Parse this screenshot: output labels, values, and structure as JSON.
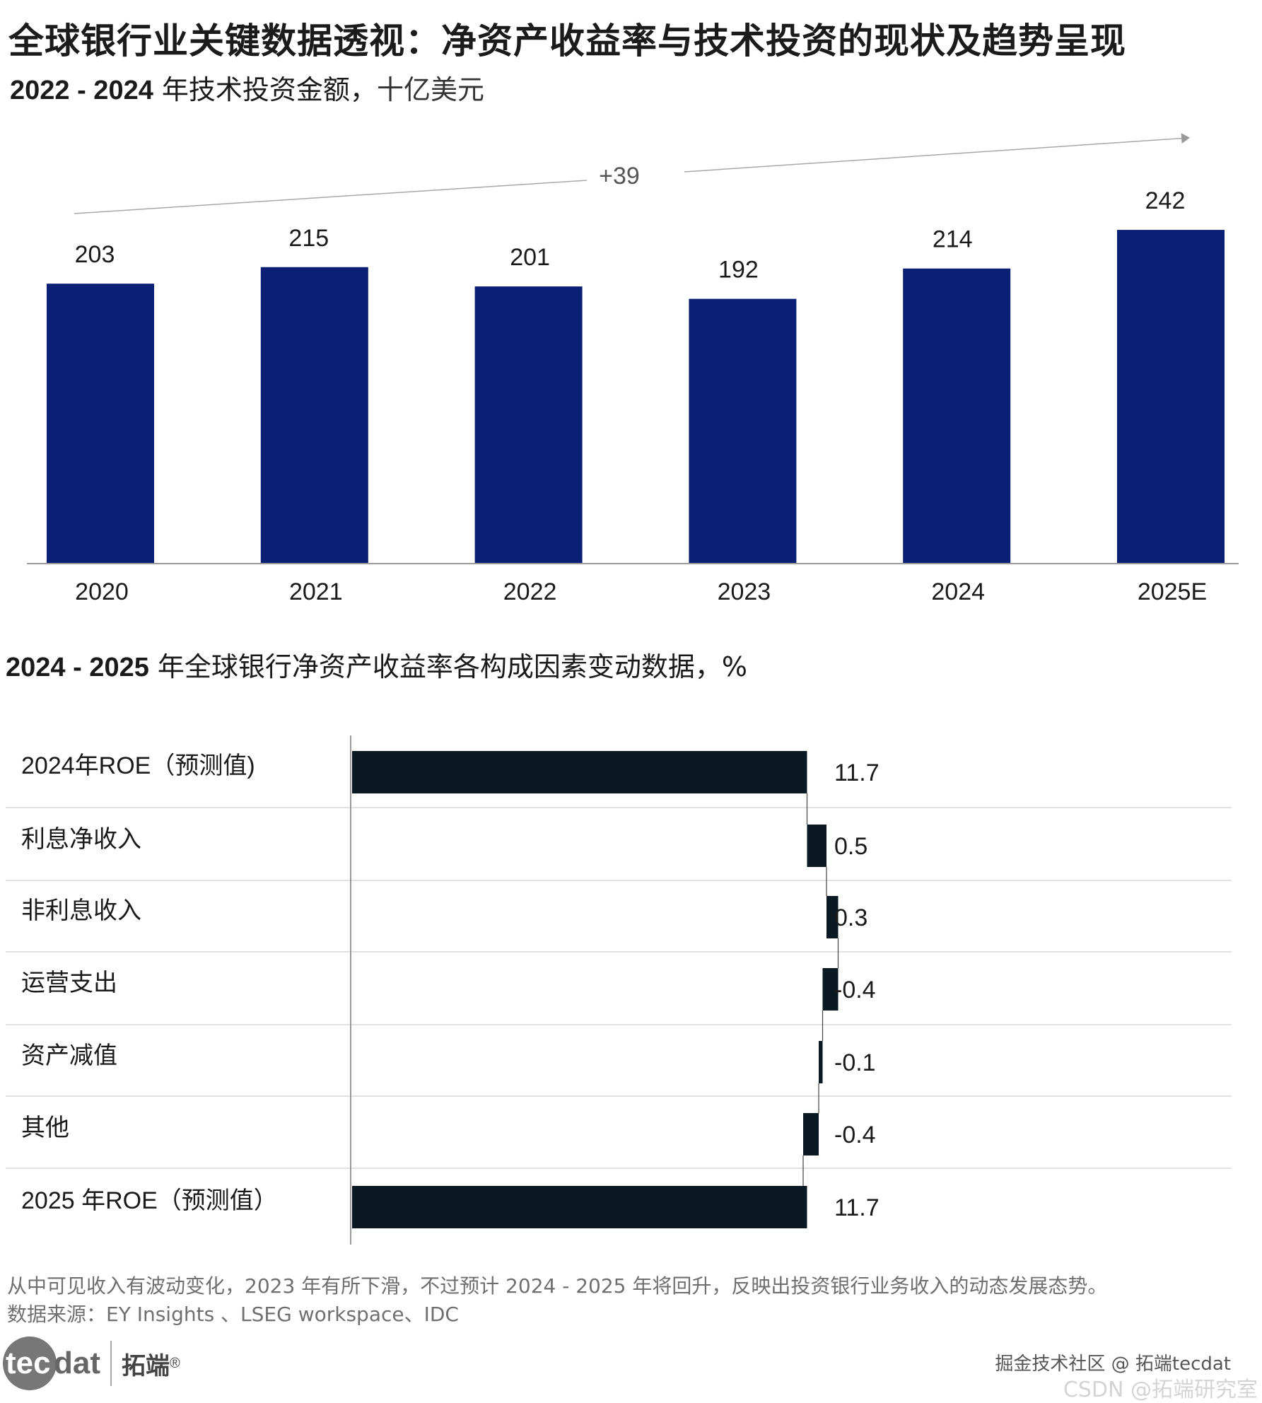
{
  "title": "全球银行业关键数据透视：净资产收益率与技术投资的现状及趋势呈现",
  "chart1_heading": {
    "years": "2022 - 2024",
    "text": " 年技术投资金额，",
    "unit": "十亿美元"
  },
  "chart2_heading": {
    "years": "2024 - 2025",
    "text": " 年全球银行净资产收益率各构成因素变动数据，%"
  },
  "chart_data": [
    {
      "type": "bar",
      "title": "2022 - 2024 年技术投资金额，十亿美元",
      "categories": [
        "2020",
        "2021",
        "2022",
        "2023",
        "2024",
        "2025E"
      ],
      "values": [
        203,
        215,
        201,
        192,
        214,
        242
      ],
      "value_labels": [
        "203",
        "215",
        "201",
        "192",
        "214",
        "242"
      ],
      "trend_annotation": "+39",
      "ylim": [
        0,
        250
      ],
      "bar_color": "#0b1f75"
    },
    {
      "type": "bar",
      "subtype": "waterfall",
      "title": "2024 - 2025 年全球银行净资产收益率各构成因素变动数据，%",
      "categories": [
        "2024年ROE（预测值)",
        "利息净收入",
        "非利息收入",
        "运营支出",
        "资产减值",
        "其他",
        "2025 年ROE（预测值）"
      ],
      "values": [
        11.7,
        0.5,
        0.3,
        -0.4,
        -0.1,
        -0.4,
        11.7
      ],
      "value_labels": [
        "11.7",
        "0.5",
        "0.3",
        "-0.4",
        "-0.1",
        "-0.4",
        "11.7"
      ],
      "total_flags": [
        true,
        false,
        false,
        false,
        false,
        false,
        true
      ],
      "bar_color": "#0b1a22"
    }
  ],
  "footer": {
    "note": "从中可见收入有波动变化，2023 年有所下滑，不过预计 2024 - 2025 年将回升，反映出投资银行业务收入的动态发展态势。",
    "source": "数据来源：EY Insights 、LSEG workspace、IDC"
  },
  "logo": {
    "circle_text": "tec",
    "rest_text": "dat",
    "cn_text": "拓端",
    "reg": "®"
  },
  "watermark": {
    "line1": "掘金技术社区 @ 拓端tecdat",
    "line2": "CSDN @拓端研究室"
  }
}
